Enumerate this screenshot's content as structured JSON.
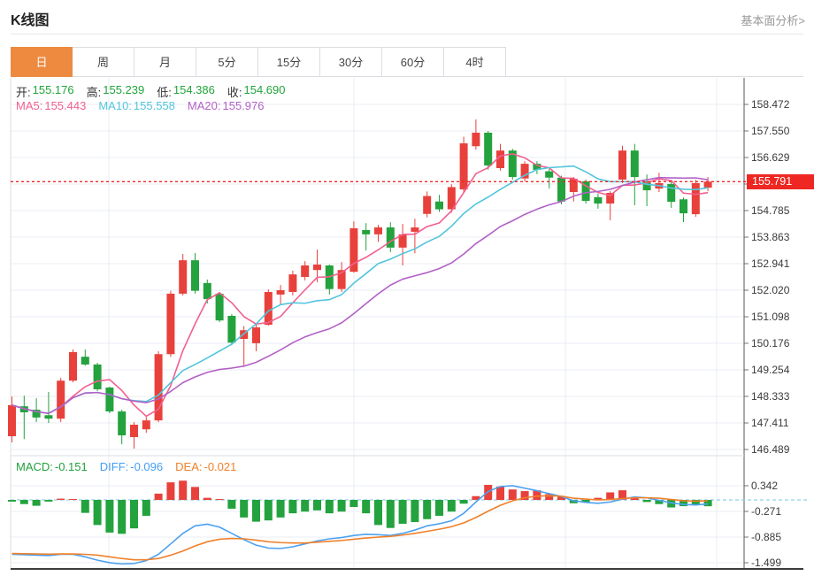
{
  "header": {
    "title": "K线图",
    "link_label": "基本面分析>"
  },
  "tabs": {
    "items": [
      "日",
      "周",
      "月",
      "5分",
      "15分",
      "30分",
      "60分",
      "4时"
    ],
    "selected_index": 0
  },
  "legend": {
    "open_label": "开:",
    "open": "155.176",
    "high_label": "高:",
    "high": "155.239",
    "low_label": "低:",
    "low": "154.386",
    "close_label": "收:",
    "close": "154.690",
    "ma5_label": "MA5:",
    "ma5": "155.443",
    "ma10_label": "MA10:",
    "ma10": "155.558",
    "ma20_label": "MA20:",
    "ma20": "155.976"
  },
  "macd_legend": {
    "macd_label": "MACD:",
    "macd": "-0.151",
    "diff_label": "DIFF:",
    "diff": "-0.096",
    "dea_label": "DEA:",
    "dea": "-0.021"
  },
  "colors": {
    "up": "#e8413c",
    "down": "#23a23d",
    "ma5": "#f25f8f",
    "ma10": "#52c5dd",
    "ma20": "#b261c6",
    "diff_line": "#4da1f0",
    "dea_line": "#f0802a",
    "value_green": "#21a53c",
    "macd_label_green": "#21a13c",
    "diff_label_blue": "#459df5",
    "dea_label_orange": "#f0802a",
    "current_price_red": "#ee2722",
    "tab_orange": "#ed8a3f",
    "grid": "#e9eef4",
    "border": "#dadde1",
    "zero_dash": "#8ed2e8",
    "axis_text": "#3a3a3a",
    "dark_baseline": "#3c3c3c"
  },
  "chart_data": {
    "type": "candlestick+macd",
    "title": "K线图",
    "x_axis_labels": [],
    "price_axis": {
      "ticks": [
        "158.472",
        "157.550",
        "156.629",
        "155.707",
        "154.785",
        "153.863",
        "152.941",
        "152.020",
        "151.098",
        "150.176",
        "149.254",
        "148.333",
        "147.411",
        "146.489"
      ],
      "range": [
        146.489,
        158.472
      ]
    },
    "current_price": 155.791,
    "current_price_label": "155.791",
    "grid": true,
    "candles_ohlc": [
      [
        146.95,
        148.33,
        146.73,
        148.03
      ],
      [
        147.99,
        148.36,
        146.85,
        147.78
      ],
      [
        147.87,
        148.27,
        147.44,
        147.6
      ],
      [
        147.68,
        148.49,
        147.41,
        147.56
      ],
      [
        147.56,
        148.98,
        147.44,
        148.88
      ],
      [
        148.88,
        149.96,
        148.82,
        149.87
      ],
      [
        149.71,
        149.96,
        149.4,
        149.44
      ],
      [
        149.44,
        149.5,
        148.52,
        148.58
      ],
      [
        148.64,
        148.67,
        147.75,
        147.81
      ],
      [
        147.81,
        147.87,
        146.67,
        146.98
      ],
      [
        146.92,
        147.44,
        146.52,
        147.35
      ],
      [
        147.19,
        147.62,
        147.07,
        147.5
      ],
      [
        147.5,
        149.9,
        147.44,
        149.8
      ],
      [
        149.8,
        152.0,
        149.7,
        151.9
      ],
      [
        151.9,
        153.28,
        151.84,
        153.06
      ],
      [
        153.06,
        153.31,
        151.9,
        152.0
      ],
      [
        152.27,
        152.39,
        151.56,
        151.71
      ],
      [
        151.9,
        151.96,
        150.91,
        150.97
      ],
      [
        151.13,
        151.19,
        150.11,
        150.2
      ],
      [
        150.33,
        150.78,
        149.41,
        150.63
      ],
      [
        150.18,
        150.84,
        149.9,
        150.73
      ],
      [
        150.82,
        152.05,
        150.79,
        151.96
      ],
      [
        151.87,
        152.2,
        151.5,
        152.02
      ],
      [
        151.96,
        152.7,
        151.84,
        152.57
      ],
      [
        152.48,
        153.03,
        152.36,
        152.88
      ],
      [
        152.72,
        153.43,
        152.3,
        152.91
      ],
      [
        152.88,
        152.91,
        151.87,
        152.06
      ],
      [
        152.06,
        153.0,
        151.96,
        152.72
      ],
      [
        152.66,
        154.41,
        152.63,
        154.17
      ],
      [
        154.11,
        154.35,
        153.4,
        153.96
      ],
      [
        153.96,
        154.29,
        153.7,
        154.2
      ],
      [
        154.2,
        154.38,
        153.34,
        153.5
      ],
      [
        153.5,
        154.32,
        152.88,
        153.96
      ],
      [
        154.05,
        154.5,
        153.3,
        154.2
      ],
      [
        154.67,
        155.45,
        154.55,
        155.29
      ],
      [
        155.1,
        155.33,
        154.74,
        154.83
      ],
      [
        154.83,
        155.7,
        154.71,
        155.6
      ],
      [
        155.52,
        157.35,
        155.4,
        157.12
      ],
      [
        157.02,
        157.95,
        156.9,
        157.49
      ],
      [
        157.49,
        157.55,
        156.2,
        156.35
      ],
      [
        156.26,
        157.1,
        156.17,
        156.87
      ],
      [
        156.87,
        156.93,
        155.86,
        155.95
      ],
      [
        155.9,
        156.5,
        155.8,
        156.41
      ],
      [
        156.41,
        156.5,
        156.05,
        156.2
      ],
      [
        156.15,
        156.23,
        155.55,
        155.93
      ],
      [
        155.93,
        156.0,
        155.0,
        155.1
      ],
      [
        155.43,
        155.95,
        155.1,
        155.89
      ],
      [
        155.8,
        155.86,
        155.03,
        155.12
      ],
      [
        155.25,
        155.37,
        154.85,
        155.03
      ],
      [
        155.03,
        155.46,
        154.45,
        155.4
      ],
      [
        155.86,
        157.03,
        155.74,
        156.87
      ],
      [
        156.87,
        157.1,
        154.97,
        155.95
      ],
      [
        155.8,
        156.04,
        154.94,
        155.49
      ],
      [
        155.55,
        156.1,
        155.43,
        155.74
      ],
      [
        155.71,
        155.8,
        154.88,
        155.09
      ],
      [
        155.176,
        155.239,
        154.386,
        154.69
      ],
      [
        154.66,
        155.86,
        154.57,
        155.74
      ],
      [
        155.58,
        155.95,
        155.46,
        155.791
      ]
    ],
    "ma_periods": [
      5,
      10,
      20
    ],
    "macd": {
      "axis_ticks": [
        "0.342",
        "-0.271",
        "-0.885",
        "-1.499"
      ],
      "hist": [
        -0.04,
        -0.1,
        -0.14,
        -0.04,
        0.03,
        0.02,
        -0.31,
        -0.6,
        -0.78,
        -0.81,
        -0.68,
        -0.38,
        0.15,
        0.42,
        0.46,
        0.31,
        0.05,
        0.02,
        -0.21,
        -0.42,
        -0.52,
        -0.49,
        -0.42,
        -0.32,
        -0.28,
        -0.25,
        -0.32,
        -0.28,
        -0.17,
        -0.32,
        -0.6,
        -0.67,
        -0.57,
        -0.53,
        -0.46,
        -0.38,
        -0.28,
        -0.09,
        0.09,
        0.36,
        0.32,
        0.25,
        0.21,
        0.23,
        0.14,
        0.08,
        -0.08,
        -0.05,
        0.05,
        0.18,
        0.23,
        0.05,
        -0.05,
        -0.1,
        -0.18,
        -0.15,
        -0.12,
        -0.151
      ],
      "diff": [
        -1.3,
        -1.31,
        -1.32,
        -1.33,
        -1.3,
        -1.3,
        -1.36,
        -1.44,
        -1.5,
        -1.53,
        -1.52,
        -1.45,
        -1.3,
        -1.05,
        -0.8,
        -0.62,
        -0.58,
        -0.65,
        -0.8,
        -0.95,
        -1.08,
        -1.15,
        -1.16,
        -1.12,
        -1.05,
        -0.98,
        -0.93,
        -0.9,
        -0.85,
        -0.82,
        -0.83,
        -0.85,
        -0.8,
        -0.72,
        -0.62,
        -0.57,
        -0.5,
        -0.32,
        -0.05,
        0.2,
        0.32,
        0.34,
        0.28,
        0.22,
        0.15,
        0.08,
        -0.02,
        -0.06,
        -0.08,
        -0.05,
        0.02,
        0.07,
        0.05,
        -0.01,
        -0.07,
        -0.11,
        -0.12,
        -0.096
      ],
      "dea": [
        -1.28,
        -1.285,
        -1.29,
        -1.295,
        -1.29,
        -1.29,
        -1.3,
        -1.32,
        -1.36,
        -1.4,
        -1.43,
        -1.43,
        -1.4,
        -1.32,
        -1.22,
        -1.1,
        -1.0,
        -0.94,
        -0.92,
        -0.93,
        -0.96,
        -1.0,
        -1.02,
        -1.03,
        -1.03,
        -1.01,
        -0.99,
        -0.97,
        -0.94,
        -0.91,
        -0.89,
        -0.87,
        -0.84,
        -0.8,
        -0.75,
        -0.7,
        -0.64,
        -0.55,
        -0.42,
        -0.27,
        -0.13,
        -0.02,
        0.05,
        0.09,
        0.1,
        0.09,
        0.04,
        0.02,
        0.0,
        0.01,
        0.03,
        0.05,
        0.05,
        0.04,
        0.01,
        -0.02,
        -0.03,
        -0.021
      ]
    }
  }
}
